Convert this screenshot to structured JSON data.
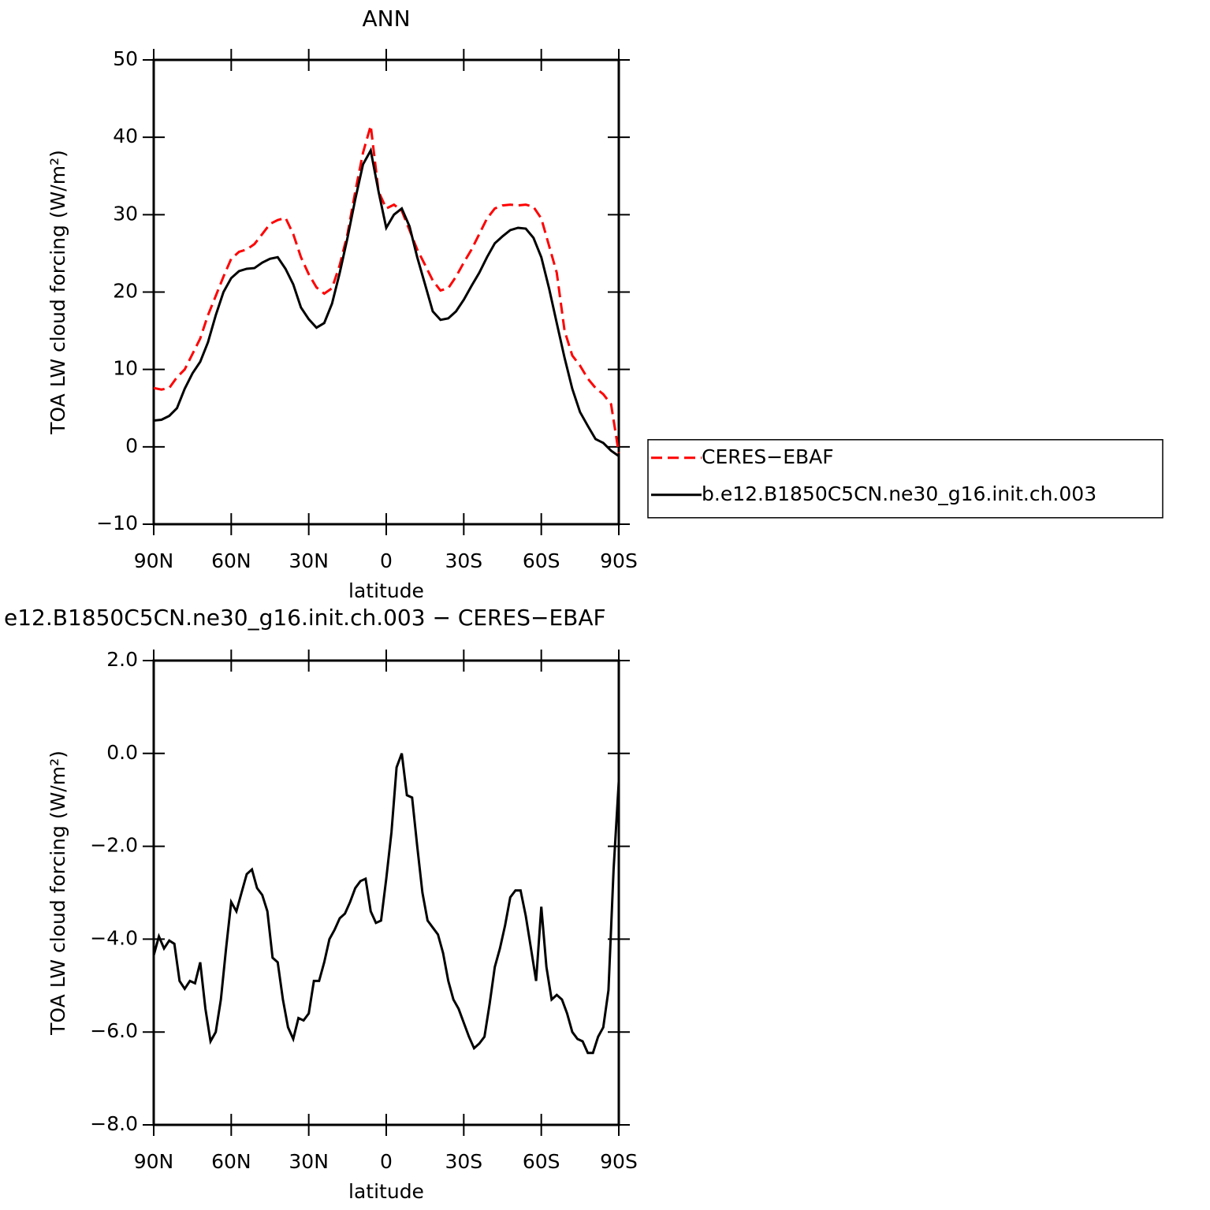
{
  "chart_data": [
    {
      "type": "line",
      "title": "ANN",
      "ylabel": "TOA LW cloud forcing (W/m²)",
      "xlabel": "latitude",
      "x": [
        90,
        87,
        84,
        81,
        78,
        75,
        72,
        69,
        66,
        63,
        60,
        57,
        54,
        51,
        48,
        45,
        42,
        39,
        36,
        33,
        30,
        27,
        24,
        21,
        18,
        15,
        12,
        9,
        6,
        3,
        0,
        -3,
        -6,
        -9,
        -12,
        -15,
        -18,
        -21,
        -24,
        -27,
        -30,
        -33,
        -36,
        -39,
        -42,
        -45,
        -48,
        -51,
        -54,
        -57,
        -60,
        -63,
        -66,
        -69,
        -72,
        -75,
        -78,
        -81,
        -84,
        -87,
        -90
      ],
      "xlim": [
        90,
        -90
      ],
      "xticks": [
        {
          "value": 90,
          "label": "90N"
        },
        {
          "value": 60,
          "label": "60N"
        },
        {
          "value": 30,
          "label": "30N"
        },
        0,
        {
          "value": -30,
          "label": "30S"
        },
        {
          "value": -60,
          "label": "60S"
        },
        {
          "value": -90,
          "label": "90S"
        }
      ],
      "ylim": [
        -10,
        50
      ],
      "yticks": [
        {
          "value": -10,
          "label": "−10"
        },
        0,
        10,
        20,
        30,
        40,
        50
      ],
      "legend": "right",
      "series": [
        {
          "name": "CERES−EBAF",
          "color": "#ff0000",
          "line_style": "dashed",
          "values": [
            7.6,
            7.4,
            7.6,
            9,
            10,
            12,
            14,
            17,
            19.5,
            22,
            24.3,
            25.2,
            25.5,
            26.2,
            27.5,
            28.8,
            29.3,
            29.6,
            27.5,
            24.5,
            22.3,
            20.6,
            19.8,
            20.5,
            23.5,
            27.5,
            33,
            38,
            41.5,
            33,
            30.8,
            31.3,
            30.5,
            28,
            25.5,
            23.5,
            21.5,
            20.2,
            20.5,
            22,
            23.8,
            25.5,
            27.5,
            29.5,
            30.8,
            31.2,
            31.3,
            31.2,
            31.3,
            31,
            29.5,
            26,
            22.5,
            15,
            11.8,
            10.5,
            8.8,
            7.6,
            6.8,
            5.5,
            -0.8
          ]
        },
        {
          "name": "b.e12.B1850C5CN.ne30_g16.init.ch.003",
          "color": "#000000",
          "line_style": "solid",
          "values": [
            3.4,
            3.5,
            4,
            5,
            7.5,
            9.5,
            11,
            13.5,
            17,
            20,
            21.8,
            22.7,
            23,
            23.1,
            23.8,
            24.3,
            24.5,
            23,
            21,
            18,
            16.5,
            15.4,
            16,
            18.5,
            22.5,
            27,
            32,
            36.5,
            38.3,
            33,
            28.3,
            30,
            30.8,
            28.5,
            24.5,
            21,
            17.5,
            16.4,
            16.6,
            17.5,
            19,
            20.8,
            22.5,
            24.5,
            26.3,
            27.2,
            28,
            28.3,
            28.2,
            27,
            24.5,
            20.5,
            16,
            11.5,
            7.5,
            4.5,
            2.7,
            1,
            0.5,
            -0.5,
            -1.2
          ]
        }
      ]
    },
    {
      "type": "line",
      "title": "e12.B1850C5CN.ne30_g16.init.ch.003 − CERES−EBAF",
      "ylabel": "TOA LW cloud forcing (W/m²)",
      "xlabel": "latitude",
      "x": [
        90,
        88,
        86,
        84,
        82,
        80,
        78,
        76,
        74,
        72,
        70,
        68,
        66,
        64,
        62,
        60,
        58,
        56,
        54,
        52,
        50,
        48,
        46,
        44,
        42,
        40,
        38,
        36,
        34,
        32,
        30,
        28,
        26,
        24,
        22,
        20,
        18,
        16,
        14,
        12,
        10,
        8,
        6,
        4,
        2,
        0,
        -2,
        -4,
        -6,
        -8,
        -10,
        -12,
        -14,
        -16,
        -18,
        -20,
        -22,
        -24,
        -26,
        -28,
        -30,
        -32,
        -34,
        -36,
        -38,
        -40,
        -42,
        -44,
        -46,
        -48,
        -50,
        -52,
        -54,
        -56,
        -58,
        -60,
        -62,
        -64,
        -66,
        -68,
        -70,
        -72,
        -74,
        -76,
        -78,
        -80,
        -82,
        -84,
        -86,
        -88,
        -90
      ],
      "xlim": [
        90,
        -90
      ],
      "xticks": [
        {
          "value": 90,
          "label": "90N"
        },
        {
          "value": 60,
          "label": "60N"
        },
        {
          "value": 30,
          "label": "30N"
        },
        0,
        {
          "value": -30,
          "label": "30S"
        },
        {
          "value": -60,
          "label": "60S"
        },
        {
          "value": -90,
          "label": "90S"
        }
      ],
      "ylim": [
        -8,
        2
      ],
      "yticks": [
        {
          "value": -8,
          "label": "−8.0"
        },
        {
          "value": -6,
          "label": "−6.0"
        },
        {
          "value": -4,
          "label": "−4.0"
        },
        {
          "value": -2,
          "label": "−2.0"
        },
        {
          "value": 0,
          "label": "0.0"
        },
        {
          "value": 2,
          "label": "2.0"
        }
      ],
      "series": [
        {
          "color": "#000000",
          "line_style": "solid",
          "values": [
            -4.35,
            -3.94,
            -4.2,
            -4.03,
            -4.1,
            -4.9,
            -5.07,
            -4.9,
            -4.95,
            -4.5,
            -5.5,
            -6.2,
            -6.0,
            -5.3,
            -4.2,
            -3.2,
            -3.4,
            -3.0,
            -2.6,
            -2.5,
            -2.9,
            -3.05,
            -3.4,
            -4.4,
            -4.5,
            -5.3,
            -5.9,
            -6.15,
            -5.7,
            -5.75,
            -5.6,
            -4.9,
            -4.9,
            -4.5,
            -4.0,
            -3.8,
            -3.55,
            -3.45,
            -3.2,
            -2.9,
            -2.75,
            -2.7,
            -3.4,
            -3.65,
            -3.6,
            -2.7,
            -1.7,
            -0.3,
            0.0,
            -0.9,
            -0.95,
            -2.0,
            -3.0,
            -3.6,
            -3.75,
            -3.9,
            -4.3,
            -4.9,
            -5.3,
            -5.5,
            -5.8,
            -6.1,
            -6.35,
            -6.25,
            -6.1,
            -5.4,
            -4.6,
            -4.2,
            -3.7,
            -3.1,
            -2.95,
            -2.95,
            -3.5,
            -4.2,
            -4.9,
            -3.3,
            -4.6,
            -5.3,
            -5.2,
            -5.3,
            -5.6,
            -6.0,
            -6.15,
            -6.2,
            -6.45,
            -6.45,
            -6.1,
            -5.9,
            -5.1,
            -2.5,
            -0.6
          ]
        }
      ]
    }
  ]
}
